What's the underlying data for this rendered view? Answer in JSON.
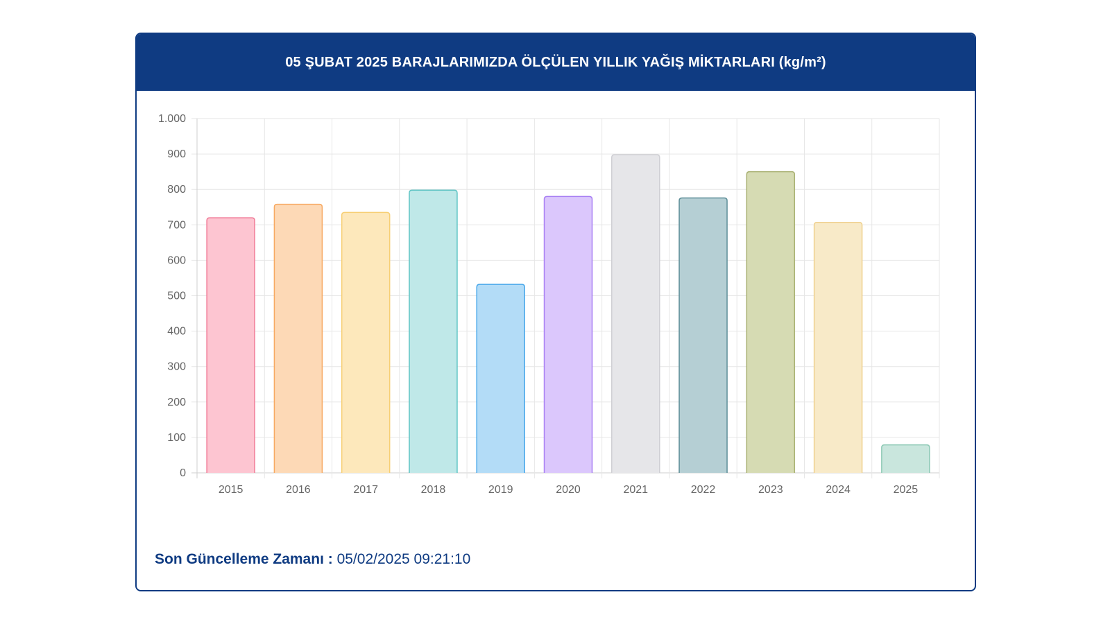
{
  "header": {
    "title": "05 ŞUBAT 2025 BARAJLARIMIZDA ÖLÇÜLEN YILLIK YAĞIŞ MİKTARLARI (kg/m²)"
  },
  "footer": {
    "label": "Son Güncelleme Zamanı :",
    "value": "05/02/2025 09:21:10"
  },
  "chart_data": {
    "type": "bar",
    "title": "05 ŞUBAT 2025 BARAJLARIMIZDA ÖLÇÜLEN YILLIK YAĞIŞ MİKTARLARI (kg/m²)",
    "xlabel": "",
    "ylabel": "",
    "categories": [
      "2015",
      "2016",
      "2017",
      "2018",
      "2019",
      "2020",
      "2021",
      "2022",
      "2023",
      "2024",
      "2025"
    ],
    "values": [
      720,
      758,
      735,
      798,
      532,
      780,
      898,
      776,
      850,
      707,
      79
    ],
    "ylim": [
      0,
      1000
    ],
    "yticks": [
      0,
      100,
      200,
      300,
      400,
      500,
      600,
      700,
      800,
      900,
      1000
    ],
    "ytick_labels": [
      "0",
      "100",
      "200",
      "300",
      "400",
      "500",
      "600",
      "700",
      "800",
      "900",
      "1.000"
    ],
    "grid": true,
    "legend": "none",
    "bar_fills": [
      "#fdc5d1",
      "#fdd9b6",
      "#fde8bb",
      "#bfe8e8",
      "#b3dcf7",
      "#dbc7fc",
      "#e6e6e9",
      "#b5cfd4",
      "#d6dbb3",
      "#f8eac8",
      "#c9e6dd"
    ],
    "bar_strokes": [
      "#f07b97",
      "#f7a860",
      "#f7cf74",
      "#5ec4c4",
      "#4aa8ea",
      "#a77ef3",
      "#cfcfd4",
      "#5d8e98",
      "#a9b172",
      "#efd08e",
      "#8ec9b5"
    ]
  }
}
